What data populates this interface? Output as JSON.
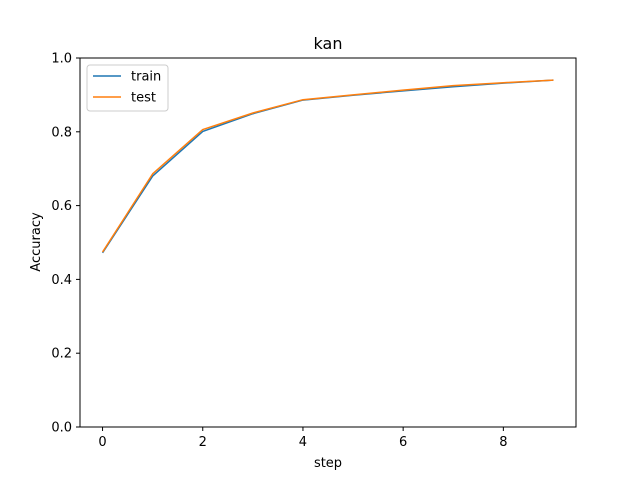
{
  "chart_data": {
    "type": "line",
    "title": "kan",
    "xlabel": "step",
    "ylabel": "Accuracy",
    "x": [
      0,
      1,
      2,
      3,
      4,
      5,
      6,
      7,
      8,
      9
    ],
    "xlim": [
      -0.45,
      9.45
    ],
    "ylim": [
      0.0,
      1.0
    ],
    "xticks": [
      0,
      2,
      4,
      6,
      8
    ],
    "xtick_labels": [
      "0",
      "2",
      "4",
      "6",
      "8"
    ],
    "yticks": [
      0.0,
      0.2,
      0.4,
      0.6,
      0.8,
      1.0
    ],
    "ytick_labels": [
      "0.0",
      "0.2",
      "0.4",
      "0.6",
      "0.8",
      "1.0"
    ],
    "grid": false,
    "legend_position": "top-left",
    "series": [
      {
        "name": "train",
        "color": "#1f77b4",
        "values": [
          0.472,
          0.68,
          0.801,
          0.849,
          0.886,
          0.899,
          0.911,
          0.922,
          0.932,
          0.94
        ]
      },
      {
        "name": "test",
        "color": "#ff7f0e",
        "values": [
          0.474,
          0.686,
          0.806,
          0.851,
          0.887,
          0.9,
          0.913,
          0.925,
          0.933,
          0.94
        ]
      }
    ]
  }
}
